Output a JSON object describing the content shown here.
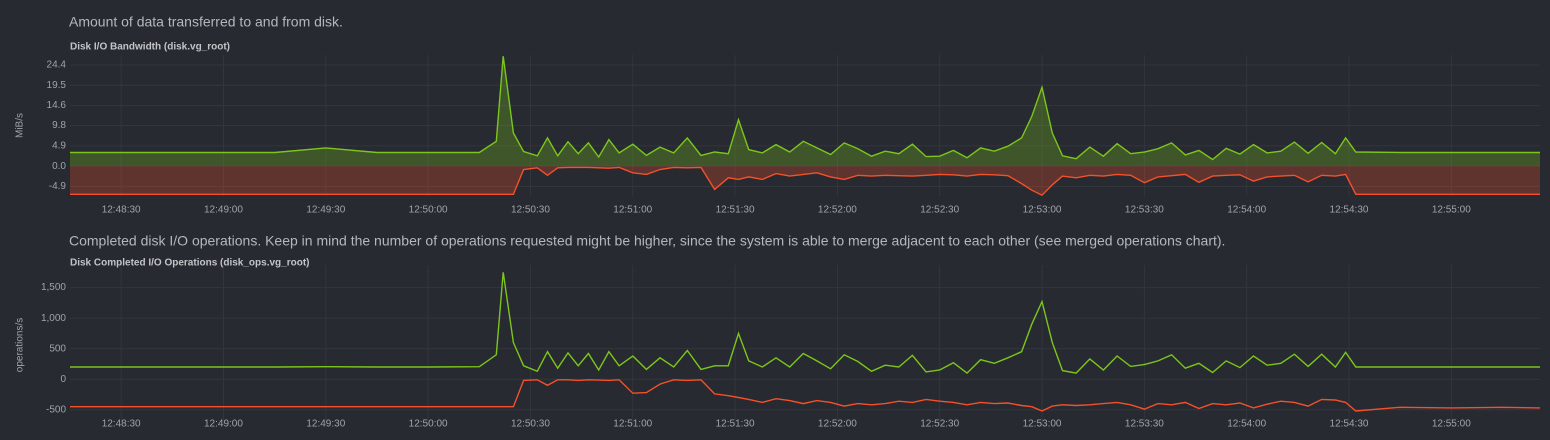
{
  "chart_data": [
    {
      "type": "area",
      "description": "Amount of data transferred to and from disk.",
      "title": "Disk I/O Bandwidth (disk.vg_root)",
      "ylabel": "MiB/s",
      "x": [
        "12:48:15",
        "12:48:30",
        "12:48:45",
        "12:49:00",
        "12:49:15",
        "12:49:30",
        "12:49:45",
        "12:50:00",
        "12:50:15",
        "12:50:20",
        "12:50:22",
        "12:50:25",
        "12:50:28",
        "12:50:32",
        "12:50:35",
        "12:50:38",
        "12:50:41",
        "12:50:44",
        "12:50:47",
        "12:50:50",
        "12:50:53",
        "12:50:56",
        "12:51:00",
        "12:51:04",
        "12:51:08",
        "12:51:12",
        "12:51:16",
        "12:51:20",
        "12:51:24",
        "12:51:28",
        "12:51:31",
        "12:51:34",
        "12:51:38",
        "12:51:42",
        "12:51:46",
        "12:51:50",
        "12:51:54",
        "12:51:58",
        "12:52:02",
        "12:52:06",
        "12:52:10",
        "12:52:14",
        "12:52:18",
        "12:52:22",
        "12:52:26",
        "12:52:30",
        "12:52:34",
        "12:52:38",
        "12:52:42",
        "12:52:46",
        "12:52:50",
        "12:52:54",
        "12:52:57",
        "12:53:00",
        "12:53:03",
        "12:53:06",
        "12:53:10",
        "12:53:14",
        "12:53:18",
        "12:53:22",
        "12:53:26",
        "12:53:30",
        "12:53:34",
        "12:53:38",
        "12:53:42",
        "12:53:46",
        "12:53:50",
        "12:53:54",
        "12:53:58",
        "12:54:02",
        "12:54:06",
        "12:54:10",
        "12:54:14",
        "12:54:18",
        "12:54:22",
        "12:54:26",
        "12:54:29",
        "12:54:32",
        "12:54:45",
        "12:55:00",
        "12:55:15",
        "12:55:26"
      ],
      "series": [
        {
          "color": "#7cc61b",
          "values": [
            3.3,
            3.3,
            3.3,
            3.3,
            3.3,
            4.4,
            3.3,
            3.3,
            3.3,
            6,
            26.5,
            8,
            3.5,
            2.5,
            6.8,
            2.5,
            5.9,
            3.0,
            5.6,
            2.2,
            6.4,
            3.2,
            5.3,
            2.6,
            4.6,
            3.2,
            6.8,
            2.6,
            3.4,
            3.0,
            11.2,
            4.0,
            3.2,
            5.2,
            3.4,
            6.0,
            4.4,
            2.8,
            5.6,
            4.2,
            2.4,
            3.6,
            3.0,
            5.3,
            2.3,
            2.4,
            3.8,
            2.0,
            4.4,
            3.6,
            4.8,
            6.8,
            12,
            19,
            8,
            2.5,
            1.8,
            4.6,
            2.4,
            5.4,
            3.0,
            3.4,
            4.2,
            5.6,
            2.7,
            3.8,
            1.6,
            4.3,
            2.9,
            5.2,
            3.2,
            3.6,
            5.8,
            3.1,
            5.7,
            3.0,
            6.8,
            3.4,
            3.3,
            3.3,
            3.3,
            3.3
          ]
        },
        {
          "color": "#f4502a",
          "values": [
            -6.8,
            -6.8,
            -6.8,
            -6.8,
            -6.8,
            -6.8,
            -6.8,
            -6.8,
            -6.8,
            -6.8,
            -6.8,
            -6.8,
            -0.8,
            -0.4,
            -2.2,
            -0.4,
            -0.3,
            -0.3,
            -0.3,
            -0.4,
            -0.5,
            -0.3,
            -1.6,
            -2.0,
            -0.8,
            -0.3,
            -0.4,
            -0.3,
            -5.6,
            -2.8,
            -3.2,
            -2.6,
            -3.2,
            -1.8,
            -2.4,
            -2.0,
            -1.6,
            -2.6,
            -3.2,
            -2.2,
            -2.4,
            -2.2,
            -2.3,
            -2.4,
            -2.2,
            -2.0,
            -2.1,
            -2.4,
            -2.0,
            -2.1,
            -2.3,
            -4.2,
            -5.8,
            -7.0,
            -4.5,
            -2.4,
            -2.8,
            -2.2,
            -2.4,
            -2.0,
            -2.2,
            -4.0,
            -2.6,
            -2.3,
            -2.0,
            -3.9,
            -2.4,
            -2.2,
            -2.1,
            -3.6,
            -2.6,
            -2.4,
            -2.2,
            -3.8,
            -2.2,
            -2.4,
            -2.0,
            -6.8,
            -6.8,
            -6.8,
            -6.8,
            -6.8
          ]
        }
      ],
      "xlim": [
        "12:48:15",
        "12:55:26"
      ],
      "xticks": [
        "12:48:30",
        "12:49:00",
        "12:49:30",
        "12:50:00",
        "12:50:30",
        "12:51:00",
        "12:51:30",
        "12:52:00",
        "12:52:30",
        "12:53:00",
        "12:53:30",
        "12:54:00",
        "12:54:30",
        "12:55:00"
      ],
      "ylim": [
        -7.2,
        26.8
      ],
      "yticks": [
        -4.9,
        {
          "value": 0,
          "label": "0.0"
        },
        4.9,
        9.8,
        14.6,
        19.5,
        24.4
      ],
      "grid": true
    },
    {
      "type": "line",
      "description": "Completed disk I/O operations. Keep in mind the number of operations requested might be higher, since the system is able to merge adjacent to each other (see merged operations chart).",
      "title": "Disk Completed I/O Operations (disk_ops.vg_root)",
      "ylabel": "operations/s",
      "x": [
        "12:48:15",
        "12:48:30",
        "12:48:45",
        "12:49:00",
        "12:49:15",
        "12:49:30",
        "12:49:45",
        "12:50:00",
        "12:50:15",
        "12:50:20",
        "12:50:22",
        "12:50:25",
        "12:50:28",
        "12:50:32",
        "12:50:35",
        "12:50:38",
        "12:50:41",
        "12:50:44",
        "12:50:47",
        "12:50:50",
        "12:50:53",
        "12:50:56",
        "12:51:00",
        "12:51:04",
        "12:51:08",
        "12:51:12",
        "12:51:16",
        "12:51:20",
        "12:51:24",
        "12:51:28",
        "12:51:31",
        "12:51:34",
        "12:51:38",
        "12:51:42",
        "12:51:46",
        "12:51:50",
        "12:51:54",
        "12:51:58",
        "12:52:02",
        "12:52:06",
        "12:52:10",
        "12:52:14",
        "12:52:18",
        "12:52:22",
        "12:52:26",
        "12:52:30",
        "12:52:34",
        "12:52:38",
        "12:52:42",
        "12:52:46",
        "12:52:50",
        "12:52:54",
        "12:52:57",
        "12:53:00",
        "12:53:03",
        "12:53:06",
        "12:53:10",
        "12:53:14",
        "12:53:18",
        "12:53:22",
        "12:53:26",
        "12:53:30",
        "12:53:34",
        "12:53:38",
        "12:53:42",
        "12:53:46",
        "12:53:50",
        "12:53:54",
        "12:53:58",
        "12:54:02",
        "12:54:06",
        "12:54:10",
        "12:54:14",
        "12:54:18",
        "12:54:22",
        "12:54:26",
        "12:54:29",
        "12:54:32",
        "12:54:45",
        "12:55:00",
        "12:55:15",
        "12:55:26"
      ],
      "series": [
        {
          "color": "#7cc61b",
          "values": [
            200,
            200,
            200,
            200,
            200,
            205,
            200,
            200,
            205,
            400,
            1750,
            600,
            220,
            130,
            450,
            180,
            430,
            220,
            420,
            150,
            450,
            220,
            380,
            160,
            350,
            200,
            470,
            160,
            220,
            220,
            750,
            300,
            200,
            350,
            200,
            420,
            300,
            170,
            400,
            290,
            130,
            230,
            200,
            390,
            120,
            150,
            270,
            100,
            320,
            260,
            350,
            450,
            900,
            1270,
            600,
            140,
            100,
            330,
            150,
            380,
            210,
            240,
            300,
            400,
            180,
            260,
            110,
            300,
            190,
            380,
            230,
            260,
            410,
            210,
            410,
            200,
            440,
            200,
            200,
            200,
            200,
            200
          ]
        },
        {
          "color": "#f4502a",
          "values": [
            -450,
            -450,
            -450,
            -450,
            -450,
            -450,
            -450,
            -450,
            -450,
            -450,
            -450,
            -450,
            -20,
            -10,
            -100,
            -10,
            -10,
            -20,
            -10,
            -15,
            -20,
            -10,
            -230,
            -220,
            -80,
            -10,
            -20,
            -10,
            -240,
            -270,
            -300,
            -330,
            -380,
            -320,
            -350,
            -400,
            -350,
            -380,
            -440,
            -400,
            -420,
            -400,
            -360,
            -380,
            -330,
            -360,
            -380,
            -420,
            -380,
            -400,
            -390,
            -430,
            -450,
            -520,
            -440,
            -420,
            -430,
            -420,
            -400,
            -380,
            -420,
            -490,
            -400,
            -420,
            -380,
            -480,
            -400,
            -420,
            -390,
            -470,
            -410,
            -360,
            -380,
            -440,
            -330,
            -340,
            -380,
            -520,
            -460,
            -470,
            -460,
            -470
          ]
        }
      ],
      "xlim": [
        "12:48:15",
        "12:55:26"
      ],
      "xticks": [
        "12:48:30",
        "12:49:00",
        "12:49:30",
        "12:50:00",
        "12:50:30",
        "12:51:00",
        "12:51:30",
        "12:52:00",
        "12:52:30",
        "12:53:00",
        "12:53:30",
        "12:54:00",
        "12:54:30",
        "12:55:00"
      ],
      "ylim": [
        -750,
        1870
      ],
      "yticks": [
        -500,
        0,
        500,
        {
          "value": 1000,
          "label": "1,000"
        },
        {
          "value": 1500,
          "label": "1,500"
        }
      ],
      "grid": true
    }
  ]
}
